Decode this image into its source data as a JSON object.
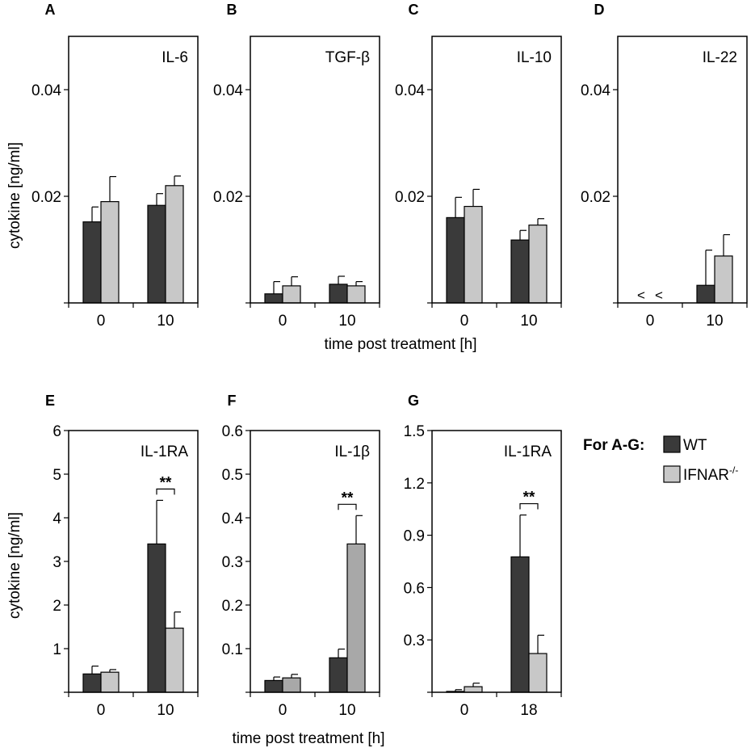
{
  "colors": {
    "wt": "#3a3a3a",
    "ifnar": "#c8c8c8",
    "ifnar_f": "#a8a8a8"
  },
  "legend": {
    "heading": "For A-G:",
    "entries": [
      {
        "label": "WT",
        "label_sup": "",
        "color": "#3a3a3a"
      },
      {
        "label": "IFNAR",
        "label_sup": "-/-",
        "color": "#c8c8c8"
      }
    ]
  },
  "shared_labels": {
    "ylabel_top": "cytokine [ng/ml]",
    "ylabel_bottom": "cytokine [ng/ml]",
    "xlabel_top": "time post treatment [h]",
    "xlabel_bottom": "time post treatment [h]"
  },
  "chart_data": [
    {
      "panel": "A",
      "type": "bar",
      "title": "IL-6",
      "categories": [
        "0",
        "10"
      ],
      "ylim": [
        0,
        0.05
      ],
      "yticks": [
        0.02,
        0.04
      ],
      "yticklabels": [
        "0.02",
        "0.04"
      ],
      "ylabel": "cytokine [ng/ml]",
      "xlabel": "",
      "grid": false,
      "series": [
        {
          "name": "WT",
          "values": [
            0.0152,
            0.0183
          ],
          "errors": [
            0.0028,
            0.0022
          ]
        },
        {
          "name": "IFNAR-/-",
          "values": [
            0.019,
            0.022
          ],
          "errors": [
            0.0047,
            0.0018
          ]
        }
      ],
      "below_detection": [],
      "significance": []
    },
    {
      "panel": "B",
      "type": "bar",
      "title": "TGF-β",
      "categories": [
        "0",
        "10"
      ],
      "ylim": [
        0,
        0.05
      ],
      "yticks": [
        0.02,
        0.04
      ],
      "yticklabels": [
        "0.02",
        "0.04"
      ],
      "ylabel": "",
      "xlabel": "time post treatment [h]",
      "grid": false,
      "series": [
        {
          "name": "WT",
          "values": [
            0.0017,
            0.0035
          ],
          "errors": [
            0.0023,
            0.0015
          ]
        },
        {
          "name": "IFNAR-/-",
          "values": [
            0.0032,
            0.0032
          ],
          "errors": [
            0.0017,
            0.0008
          ]
        }
      ],
      "below_detection": [],
      "significance": []
    },
    {
      "panel": "C",
      "type": "bar",
      "title": "IL-10",
      "categories": [
        "0",
        "10"
      ],
      "ylim": [
        0,
        0.05
      ],
      "yticks": [
        0.02,
        0.04
      ],
      "yticklabels": [
        "0.02",
        "0.04"
      ],
      "ylabel": "",
      "xlabel": "",
      "grid": false,
      "series": [
        {
          "name": "WT",
          "values": [
            0.016,
            0.0118
          ],
          "errors": [
            0.0038,
            0.0018
          ]
        },
        {
          "name": "IFNAR-/-",
          "values": [
            0.0181,
            0.0146
          ],
          "errors": [
            0.0032,
            0.0012
          ]
        }
      ],
      "below_detection": [],
      "significance": []
    },
    {
      "panel": "D",
      "type": "bar",
      "title": "IL-22",
      "categories": [
        "0",
        "10"
      ],
      "ylim": [
        0,
        0.05
      ],
      "yticks": [
        0.02,
        0.04
      ],
      "yticklabels": [
        "0.02",
        "0.04"
      ],
      "ylabel": "",
      "xlabel": "",
      "grid": false,
      "series": [
        {
          "name": "WT",
          "values": [
            0,
            0.0033
          ],
          "errors": [
            0,
            0.0066
          ]
        },
        {
          "name": "IFNAR-/-",
          "values": [
            0,
            0.0088
          ],
          "errors": [
            0,
            0.004
          ]
        }
      ],
      "below_detection": [
        {
          "category": 0,
          "series": 0,
          "mark": "<"
        },
        {
          "category": 0,
          "series": 1,
          "mark": "<"
        }
      ],
      "significance": []
    },
    {
      "panel": "E",
      "type": "bar",
      "title": "IL-1RA",
      "categories": [
        "0",
        "10"
      ],
      "ylim": [
        0,
        6
      ],
      "yticks": [
        1,
        2,
        3,
        4,
        5,
        6
      ],
      "yticklabels": [
        "1",
        "2",
        "3",
        "4",
        "5",
        "6"
      ],
      "ylabel": "cytokine [ng/ml]",
      "xlabel": "",
      "grid": false,
      "series": [
        {
          "name": "WT",
          "values": [
            0.42,
            3.4
          ],
          "errors": [
            0.18,
            1.0
          ]
        },
        {
          "name": "IFNAR-/-",
          "values": [
            0.46,
            1.47
          ],
          "errors": [
            0.06,
            0.37
          ]
        }
      ],
      "below_detection": [],
      "significance": [
        {
          "category": 1,
          "label": "**"
        }
      ]
    },
    {
      "panel": "F",
      "type": "bar",
      "title": "IL-1β",
      "categories": [
        "0",
        "10"
      ],
      "ylim": [
        0,
        0.6
      ],
      "yticks": [
        0.1,
        0.2,
        0.3,
        0.4,
        0.5,
        0.6
      ],
      "yticklabels": [
        "0.1",
        "0.2",
        "0.3",
        "0.4",
        "0.5",
        "0.6"
      ],
      "ylabel": "",
      "xlabel": "time post treatment [h]",
      "grid": false,
      "series": [
        {
          "name": "WT",
          "values": [
            0.027,
            0.079
          ],
          "errors": [
            0.008,
            0.02
          ]
        },
        {
          "name": "IFNAR-/-",
          "values": [
            0.033,
            0.34
          ],
          "errors": [
            0.008,
            0.065
          ]
        }
      ],
      "below_detection": [],
      "significance": [
        {
          "category": 1,
          "label": "**"
        }
      ]
    },
    {
      "panel": "G",
      "type": "bar",
      "title": "IL-1RA",
      "categories": [
        "0",
        "18"
      ],
      "ylim": [
        0,
        1.5
      ],
      "yticks": [
        0.3,
        0.6,
        0.9,
        1.2,
        1.5
      ],
      "yticklabels": [
        "0.3",
        "0.6",
        "0.9",
        "1.2",
        "1.5"
      ],
      "ylabel": "",
      "xlabel": "",
      "grid": false,
      "series": [
        {
          "name": "WT",
          "values": [
            0.005,
            0.776
          ],
          "errors": [
            0.01,
            0.24
          ]
        },
        {
          "name": "IFNAR-/-",
          "values": [
            0.032,
            0.222
          ],
          "errors": [
            0.02,
            0.105
          ]
        }
      ],
      "below_detection": [],
      "significance": [
        {
          "category": 1,
          "label": "**"
        }
      ]
    }
  ]
}
